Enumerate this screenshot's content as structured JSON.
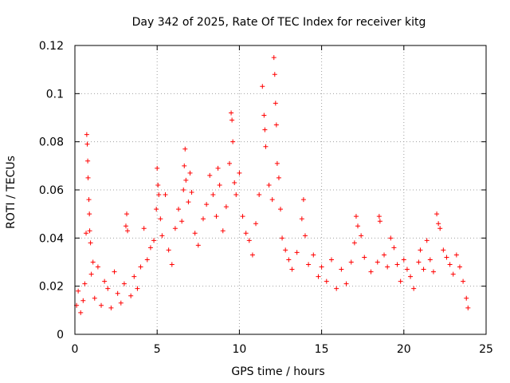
{
  "chart_data": {
    "type": "scatter",
    "title": "Day 342 of 2025, Rate Of TEC Index for receiver kitg",
    "xlabel": "GPS time / hours",
    "ylabel": "ROTI / TECUs",
    "xlim": [
      0,
      25
    ],
    "ylim": [
      0,
      0.12
    ],
    "xticks": [
      0,
      5,
      10,
      15,
      20,
      25
    ],
    "xtick_labels": [
      "0",
      "5",
      "10",
      "15",
      "20",
      "25"
    ],
    "yticks": [
      0,
      0.02,
      0.04,
      0.06,
      0.08,
      0.1,
      0.12
    ],
    "ytick_labels": [
      "0",
      "0.02",
      "0.04",
      "0.06",
      "0.08",
      "0.1",
      "0.12"
    ],
    "grid": true,
    "marker": "+",
    "color": "#ff0000",
    "series": [
      {
        "name": "ROTI",
        "points": [
          [
            0.1,
            0.012
          ],
          [
            0.2,
            0.018
          ],
          [
            0.35,
            0.009
          ],
          [
            0.5,
            0.014
          ],
          [
            0.6,
            0.021
          ],
          [
            0.68,
            0.042
          ],
          [
            0.72,
            0.083
          ],
          [
            0.75,
            0.079
          ],
          [
            0.78,
            0.072
          ],
          [
            0.8,
            0.065
          ],
          [
            0.85,
            0.056
          ],
          [
            0.88,
            0.05
          ],
          [
            0.9,
            0.043
          ],
          [
            0.95,
            0.038
          ],
          [
            1.0,
            0.025
          ],
          [
            1.1,
            0.03
          ],
          [
            1.2,
            0.015
          ],
          [
            1.4,
            0.028
          ],
          [
            1.6,
            0.012
          ],
          [
            1.8,
            0.022
          ],
          [
            2.0,
            0.019
          ],
          [
            2.2,
            0.011
          ],
          [
            2.4,
            0.026
          ],
          [
            2.6,
            0.017
          ],
          [
            2.8,
            0.013
          ],
          [
            3.0,
            0.021
          ],
          [
            3.1,
            0.045
          ],
          [
            3.15,
            0.05
          ],
          [
            3.2,
            0.043
          ],
          [
            3.4,
            0.016
          ],
          [
            3.6,
            0.024
          ],
          [
            3.8,
            0.019
          ],
          [
            4.0,
            0.028
          ],
          [
            4.2,
            0.044
          ],
          [
            4.4,
            0.031
          ],
          [
            4.6,
            0.036
          ],
          [
            4.8,
            0.039
          ],
          [
            4.95,
            0.052
          ],
          [
            5.0,
            0.069
          ],
          [
            5.05,
            0.062
          ],
          [
            5.1,
            0.058
          ],
          [
            5.2,
            0.048
          ],
          [
            5.3,
            0.041
          ],
          [
            5.5,
            0.058
          ],
          [
            5.7,
            0.035
          ],
          [
            5.9,
            0.029
          ],
          [
            6.1,
            0.044
          ],
          [
            6.3,
            0.052
          ],
          [
            6.5,
            0.047
          ],
          [
            6.6,
            0.06
          ],
          [
            6.65,
            0.07
          ],
          [
            6.7,
            0.077
          ],
          [
            6.75,
            0.064
          ],
          [
            6.9,
            0.055
          ],
          [
            7.0,
            0.067
          ],
          [
            7.1,
            0.059
          ],
          [
            7.3,
            0.042
          ],
          [
            7.5,
            0.037
          ],
          [
            7.8,
            0.048
          ],
          [
            8.0,
            0.054
          ],
          [
            8.2,
            0.066
          ],
          [
            8.4,
            0.058
          ],
          [
            8.6,
            0.049
          ],
          [
            8.7,
            0.069
          ],
          [
            8.8,
            0.062
          ],
          [
            9.0,
            0.043
          ],
          [
            9.2,
            0.053
          ],
          [
            9.4,
            0.071
          ],
          [
            9.5,
            0.092
          ],
          [
            9.55,
            0.089
          ],
          [
            9.6,
            0.08
          ],
          [
            9.7,
            0.063
          ],
          [
            9.8,
            0.058
          ],
          [
            10.0,
            0.067
          ],
          [
            10.2,
            0.049
          ],
          [
            10.4,
            0.042
          ],
          [
            10.6,
            0.039
          ],
          [
            10.8,
            0.033
          ],
          [
            11.0,
            0.046
          ],
          [
            11.2,
            0.058
          ],
          [
            11.4,
            0.103
          ],
          [
            11.5,
            0.091
          ],
          [
            11.55,
            0.085
          ],
          [
            11.6,
            0.078
          ],
          [
            11.8,
            0.062
          ],
          [
            12.0,
            0.056
          ],
          [
            12.1,
            0.115
          ],
          [
            12.15,
            0.108
          ],
          [
            12.2,
            0.096
          ],
          [
            12.25,
            0.087
          ],
          [
            12.3,
            0.071
          ],
          [
            12.4,
            0.065
          ],
          [
            12.5,
            0.052
          ],
          [
            12.6,
            0.04
          ],
          [
            12.8,
            0.035
          ],
          [
            13.0,
            0.031
          ],
          [
            13.2,
            0.027
          ],
          [
            13.5,
            0.034
          ],
          [
            13.8,
            0.048
          ],
          [
            13.9,
            0.056
          ],
          [
            14.0,
            0.041
          ],
          [
            14.2,
            0.029
          ],
          [
            14.5,
            0.033
          ],
          [
            14.8,
            0.024
          ],
          [
            15.0,
            0.028
          ],
          [
            15.3,
            0.022
          ],
          [
            15.6,
            0.031
          ],
          [
            15.9,
            0.019
          ],
          [
            16.2,
            0.027
          ],
          [
            16.5,
            0.021
          ],
          [
            16.8,
            0.03
          ],
          [
            17.0,
            0.038
          ],
          [
            17.1,
            0.049
          ],
          [
            17.2,
            0.045
          ],
          [
            17.4,
            0.041
          ],
          [
            17.6,
            0.032
          ],
          [
            18.0,
            0.026
          ],
          [
            18.4,
            0.03
          ],
          [
            18.5,
            0.049
          ],
          [
            18.55,
            0.047
          ],
          [
            18.8,
            0.033
          ],
          [
            19.0,
            0.028
          ],
          [
            19.2,
            0.04
          ],
          [
            19.4,
            0.036
          ],
          [
            19.6,
            0.029
          ],
          [
            19.8,
            0.022
          ],
          [
            20.0,
            0.031
          ],
          [
            20.2,
            0.027
          ],
          [
            20.4,
            0.024
          ],
          [
            20.6,
            0.019
          ],
          [
            20.9,
            0.03
          ],
          [
            21.0,
            0.035
          ],
          [
            21.2,
            0.027
          ],
          [
            21.4,
            0.039
          ],
          [
            21.6,
            0.031
          ],
          [
            21.8,
            0.026
          ],
          [
            22.0,
            0.05
          ],
          [
            22.1,
            0.046
          ],
          [
            22.2,
            0.044
          ],
          [
            22.4,
            0.035
          ],
          [
            22.6,
            0.032
          ],
          [
            22.8,
            0.029
          ],
          [
            23.0,
            0.025
          ],
          [
            23.2,
            0.033
          ],
          [
            23.4,
            0.028
          ],
          [
            23.6,
            0.022
          ],
          [
            23.8,
            0.015
          ],
          [
            23.9,
            0.011
          ]
        ]
      }
    ]
  }
}
